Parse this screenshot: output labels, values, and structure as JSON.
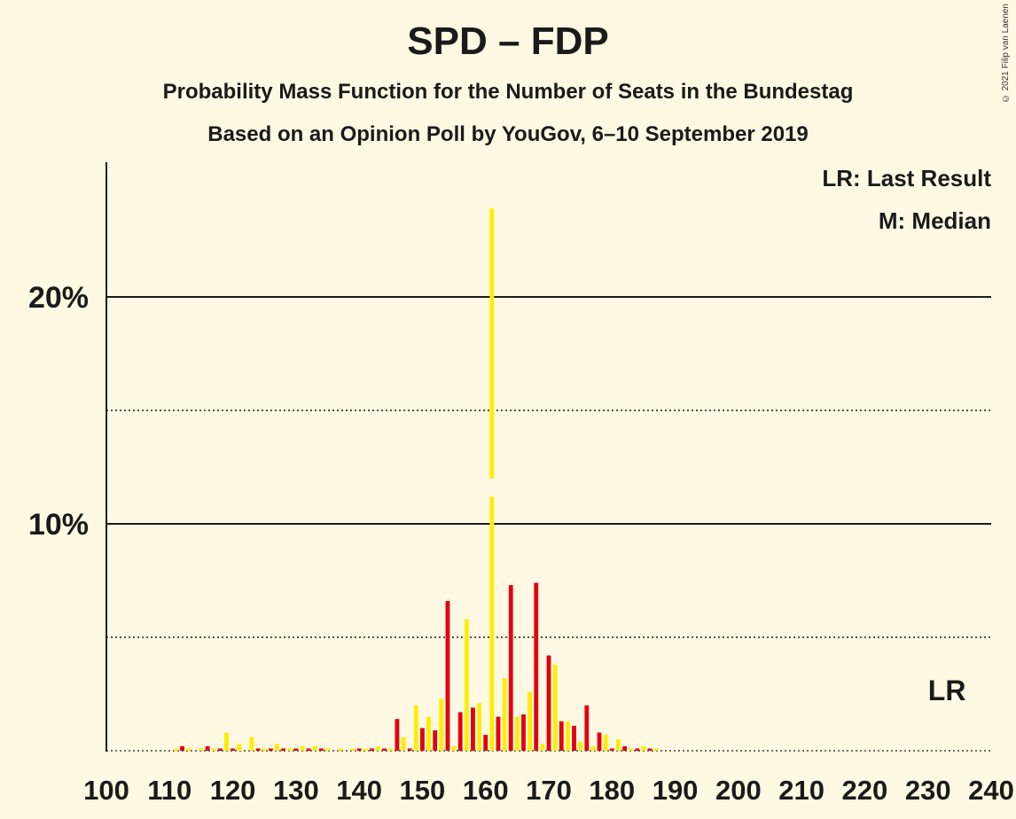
{
  "title": "SPD – FDP",
  "subtitle1": "Probability Mass Function for the Number of Seats in the Bundestag",
  "subtitle2": "Based on an Opinion Poll by YouGov, 6–10 September 2019",
  "copyright": "© 2021 Filip van Laenen",
  "legend": {
    "lr": "LR: Last Result",
    "median": "M: Median"
  },
  "colors": {
    "background": "#FFF9E3",
    "spd": "#E3000F",
    "fdp": "#FFED00"
  },
  "chart_data": {
    "type": "bar",
    "xlim": [
      100,
      240
    ],
    "ylim": [
      0,
      26
    ],
    "xticks": [
      "100",
      "110",
      "120",
      "130",
      "140",
      "150",
      "160",
      "170",
      "180",
      "190",
      "200",
      "210",
      "220",
      "230",
      "240"
    ],
    "yticks": [
      {
        "value": 10,
        "label": "10%"
      },
      {
        "value": 20,
        "label": "20%"
      }
    ],
    "dotted_gridlines": [
      5,
      15
    ],
    "solid_gridlines": [
      10,
      20
    ],
    "median": 161,
    "last_result": {
      "seats": 233,
      "label": "LR"
    },
    "series": [
      {
        "color": "spd",
        "points": [
          [
            112,
            0.2
          ],
          [
            116,
            0.2
          ],
          [
            118,
            0.1
          ],
          [
            120,
            0.1
          ],
          [
            124,
            0.1
          ],
          [
            126,
            0.1
          ],
          [
            128,
            0.1
          ],
          [
            130,
            0.1
          ],
          [
            132,
            0.1
          ],
          [
            134,
            0.1
          ],
          [
            140,
            0.1
          ],
          [
            142,
            0.1
          ],
          [
            144,
            0.1
          ],
          [
            146,
            1.4
          ],
          [
            148,
            0.1
          ],
          [
            150,
            1.0
          ],
          [
            152,
            0.9
          ],
          [
            154,
            6.6
          ],
          [
            156,
            1.7
          ],
          [
            158,
            1.9
          ],
          [
            160,
            0.7
          ],
          [
            162,
            1.5
          ],
          [
            164,
            7.3
          ],
          [
            166,
            1.6
          ],
          [
            168,
            7.4
          ],
          [
            170,
            4.2
          ],
          [
            172,
            1.3
          ],
          [
            174,
            1.1
          ],
          [
            176,
            2.0
          ],
          [
            178,
            0.8
          ],
          [
            180,
            0.1
          ],
          [
            182,
            0.2
          ],
          [
            184,
            0.1
          ],
          [
            186,
            0.1
          ]
        ]
      },
      {
        "color": "fdp",
        "points": [
          [
            111,
            0.1
          ],
          [
            113,
            0.1
          ],
          [
            115,
            0.1
          ],
          [
            117,
            0.1
          ],
          [
            119,
            0.8
          ],
          [
            121,
            0.3
          ],
          [
            123,
            0.6
          ],
          [
            125,
            0.1
          ],
          [
            127,
            0.3
          ],
          [
            129,
            0.1
          ],
          [
            131,
            0.2
          ],
          [
            133,
            0.2
          ],
          [
            135,
            0.1
          ],
          [
            137,
            0.1
          ],
          [
            139,
            0.1
          ],
          [
            141,
            0.1
          ],
          [
            143,
            0.2
          ],
          [
            145,
            0.1
          ],
          [
            147,
            0.6
          ],
          [
            149,
            2.0
          ],
          [
            151,
            1.5
          ],
          [
            153,
            2.3
          ],
          [
            155,
            0.2
          ],
          [
            157,
            5.8
          ],
          [
            159,
            2.1
          ],
          [
            161,
            23.9
          ],
          [
            163,
            3.2
          ],
          [
            165,
            1.5
          ],
          [
            167,
            2.6
          ],
          [
            169,
            0.3
          ],
          [
            171,
            3.8
          ],
          [
            173,
            1.3
          ],
          [
            175,
            0.4
          ],
          [
            177,
            0.2
          ],
          [
            179,
            0.7
          ],
          [
            181,
            0.5
          ],
          [
            183,
            0.1
          ],
          [
            185,
            0.2
          ],
          [
            187,
            0.1
          ]
        ]
      }
    ]
  }
}
